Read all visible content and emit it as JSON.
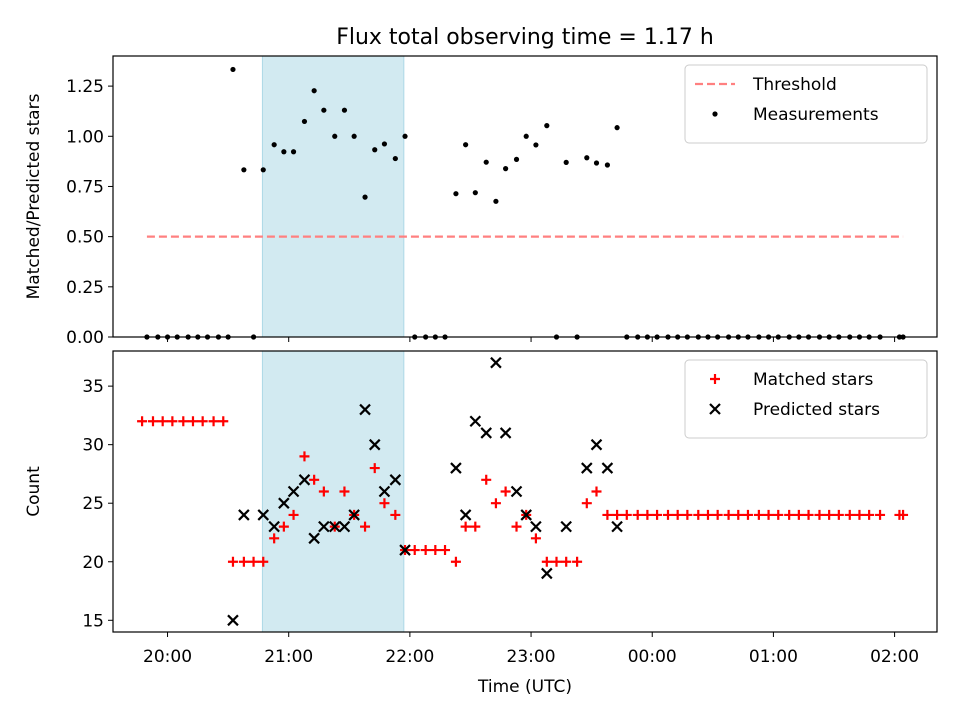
{
  "title": "Flux total observing time = 1.17 h",
  "colors": {
    "threshold": "#ff8080",
    "measurements": "#000000",
    "matched": "#ff0000",
    "predicted": "#000000",
    "span": "#add8e6"
  },
  "chart_data": [
    {
      "type": "scatter",
      "ylabel": "Matched/Predicted stars",
      "ylim": [
        0,
        1.4
      ],
      "yticks": [
        0,
        0.25,
        0.5,
        0.75,
        1.0,
        1.25
      ],
      "ytick_labels": [
        "0.00",
        "0.25",
        "0.50",
        "0.75",
        "1.00",
        "1.25"
      ],
      "xlim": [
        19.55,
        26.35
      ],
      "xticks": [
        20,
        21,
        22,
        23,
        24,
        25,
        26
      ],
      "shaded_span": [
        20.783,
        21.95
      ],
      "legend": {
        "position": "top-right",
        "entries": [
          "Threshold",
          "Measurements"
        ]
      },
      "threshold": {
        "name": "Threshold",
        "y": 0.5,
        "x": [
          19.83,
          26.07
        ],
        "style": "dashed"
      },
      "series": [
        {
          "name": "Measurements",
          "marker": "dot",
          "points": [
            [
              19.83,
              0
            ],
            [
              19.92,
              0
            ],
            [
              20.0,
              0
            ],
            [
              20.08,
              0
            ],
            [
              20.17,
              0
            ],
            [
              20.25,
              0
            ],
            [
              20.33,
              0
            ],
            [
              20.42,
              0
            ],
            [
              20.5,
              0
            ],
            [
              20.54,
              1.333
            ],
            [
              20.63,
              0.833
            ],
            [
              20.71,
              0
            ],
            [
              20.79,
              0.833
            ],
            [
              20.88,
              0.958
            ],
            [
              20.96,
              0.923
            ],
            [
              21.04,
              0.923
            ],
            [
              21.13,
              1.074
            ],
            [
              21.21,
              1.227
            ],
            [
              21.29,
              1.13
            ],
            [
              21.38,
              1.0
            ],
            [
              21.46,
              1.13
            ],
            [
              21.54,
              1.0
            ],
            [
              21.63,
              0.697
            ],
            [
              21.71,
              0.933
            ],
            [
              21.79,
              0.962
            ],
            [
              21.88,
              0.889
            ],
            [
              21.96,
              1.0
            ],
            [
              22.04,
              0
            ],
            [
              22.13,
              0
            ],
            [
              22.21,
              0
            ],
            [
              22.29,
              0
            ],
            [
              22.38,
              0.714
            ],
            [
              22.46,
              0.958
            ],
            [
              22.54,
              0.719
            ],
            [
              22.63,
              0.871
            ],
            [
              22.71,
              0.676
            ],
            [
              22.79,
              0.839
            ],
            [
              22.88,
              0.885
            ],
            [
              22.96,
              1.0
            ],
            [
              23.04,
              0.957
            ],
            [
              23.13,
              1.053
            ],
            [
              23.21,
              0
            ],
            [
              23.29,
              0.87
            ],
            [
              23.38,
              0
            ],
            [
              23.46,
              0.893
            ],
            [
              23.54,
              0.867
            ],
            [
              23.63,
              0.857
            ],
            [
              23.71,
              1.043
            ],
            [
              23.79,
              0
            ],
            [
              23.88,
              0
            ],
            [
              23.96,
              0
            ],
            [
              24.04,
              0
            ],
            [
              24.13,
              0
            ],
            [
              24.21,
              0
            ],
            [
              24.29,
              0
            ],
            [
              24.38,
              0
            ],
            [
              24.46,
              0
            ],
            [
              24.54,
              0
            ],
            [
              24.63,
              0
            ],
            [
              24.71,
              0
            ],
            [
              24.79,
              0
            ],
            [
              24.88,
              0
            ],
            [
              24.96,
              0
            ],
            [
              25.04,
              0
            ],
            [
              25.13,
              0
            ],
            [
              25.21,
              0
            ],
            [
              25.29,
              0
            ],
            [
              25.38,
              0
            ],
            [
              25.46,
              0
            ],
            [
              25.54,
              0
            ],
            [
              25.63,
              0
            ],
            [
              25.71,
              0
            ],
            [
              25.79,
              0
            ],
            [
              25.88,
              0
            ],
            [
              26.04,
              0
            ],
            [
              26.07,
              0
            ]
          ]
        }
      ]
    },
    {
      "type": "scatter",
      "ylabel": "Count",
      "xlabel": "Time (UTC)",
      "ylim": [
        14,
        38
      ],
      "yticks": [
        15,
        20,
        25,
        30,
        35
      ],
      "ytick_labels": [
        "15",
        "20",
        "25",
        "30",
        "35"
      ],
      "xlim": [
        19.55,
        26.35
      ],
      "xticks": [
        20,
        21,
        22,
        23,
        24,
        25,
        26
      ],
      "xtick_labels": [
        "20:00",
        "21:00",
        "22:00",
        "23:00",
        "00:00",
        "01:00",
        "02:00"
      ],
      "shaded_span": [
        20.783,
        21.95
      ],
      "legend": {
        "position": "top-right",
        "entries": [
          "Matched stars",
          "Predicted stars"
        ]
      },
      "series": [
        {
          "name": "Matched stars",
          "marker": "plus",
          "points": [
            [
              19.79,
              32
            ],
            [
              19.88,
              32
            ],
            [
              19.96,
              32
            ],
            [
              20.04,
              32
            ],
            [
              20.13,
              32
            ],
            [
              20.21,
              32
            ],
            [
              20.29,
              32
            ],
            [
              20.38,
              32
            ],
            [
              20.46,
              32
            ],
            [
              20.54,
              20
            ],
            [
              20.63,
              20
            ],
            [
              20.71,
              20
            ],
            [
              20.79,
              20
            ],
            [
              20.88,
              22
            ],
            [
              20.96,
              23
            ],
            [
              21.04,
              24
            ],
            [
              21.13,
              29
            ],
            [
              21.21,
              27
            ],
            [
              21.29,
              26
            ],
            [
              21.38,
              23
            ],
            [
              21.46,
              26
            ],
            [
              21.54,
              24
            ],
            [
              21.63,
              23
            ],
            [
              21.71,
              28
            ],
            [
              21.79,
              25
            ],
            [
              21.88,
              24
            ],
            [
              21.96,
              21
            ],
            [
              22.04,
              21
            ],
            [
              22.13,
              21
            ],
            [
              22.21,
              21
            ],
            [
              22.29,
              21
            ],
            [
              22.38,
              20
            ],
            [
              22.46,
              23
            ],
            [
              22.54,
              23
            ],
            [
              22.63,
              27
            ],
            [
              22.71,
              25
            ],
            [
              22.79,
              26
            ],
            [
              22.88,
              23
            ],
            [
              22.96,
              24
            ],
            [
              23.04,
              22
            ],
            [
              23.13,
              20
            ],
            [
              23.21,
              20
            ],
            [
              23.29,
              20
            ],
            [
              23.38,
              20
            ],
            [
              23.46,
              25
            ],
            [
              23.54,
              26
            ],
            [
              23.63,
              24
            ],
            [
              23.71,
              24
            ],
            [
              23.79,
              24
            ],
            [
              23.88,
              24
            ],
            [
              23.96,
              24
            ],
            [
              24.04,
              24
            ],
            [
              24.13,
              24
            ],
            [
              24.21,
              24
            ],
            [
              24.29,
              24
            ],
            [
              24.38,
              24
            ],
            [
              24.46,
              24
            ],
            [
              24.54,
              24
            ],
            [
              24.63,
              24
            ],
            [
              24.71,
              24
            ],
            [
              24.79,
              24
            ],
            [
              24.88,
              24
            ],
            [
              24.96,
              24
            ],
            [
              25.04,
              24
            ],
            [
              25.13,
              24
            ],
            [
              25.21,
              24
            ],
            [
              25.29,
              24
            ],
            [
              25.38,
              24
            ],
            [
              25.46,
              24
            ],
            [
              25.54,
              24
            ],
            [
              25.63,
              24
            ],
            [
              25.71,
              24
            ],
            [
              25.79,
              24
            ],
            [
              25.88,
              24
            ],
            [
              26.04,
              24
            ],
            [
              26.07,
              24
            ]
          ]
        },
        {
          "name": "Predicted stars",
          "marker": "x",
          "points": [
            [
              20.54,
              15
            ],
            [
              20.63,
              24
            ],
            [
              20.79,
              24
            ],
            [
              20.88,
              23
            ],
            [
              20.96,
              25
            ],
            [
              21.04,
              26
            ],
            [
              21.13,
              27
            ],
            [
              21.21,
              22
            ],
            [
              21.29,
              23
            ],
            [
              21.38,
              23
            ],
            [
              21.46,
              23
            ],
            [
              21.54,
              24
            ],
            [
              21.63,
              33
            ],
            [
              21.71,
              30
            ],
            [
              21.79,
              26
            ],
            [
              21.88,
              27
            ],
            [
              21.96,
              21
            ],
            [
              22.38,
              28
            ],
            [
              22.46,
              24
            ],
            [
              22.54,
              32
            ],
            [
              22.63,
              31
            ],
            [
              22.71,
              37
            ],
            [
              22.79,
              31
            ],
            [
              22.88,
              26
            ],
            [
              22.96,
              24
            ],
            [
              23.04,
              23
            ],
            [
              23.13,
              19
            ],
            [
              23.29,
              23
            ],
            [
              23.46,
              28
            ],
            [
              23.54,
              30
            ],
            [
              23.63,
              28
            ],
            [
              23.71,
              23
            ]
          ]
        }
      ]
    }
  ]
}
